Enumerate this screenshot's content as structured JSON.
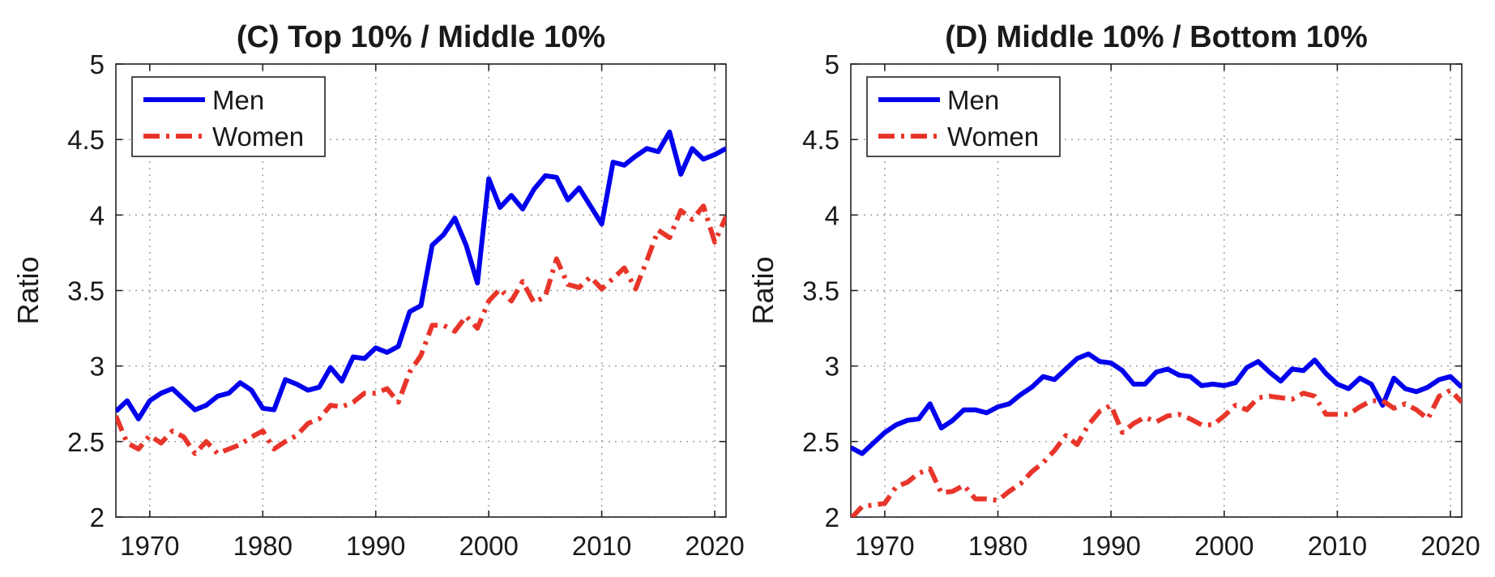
{
  "chart_data": [
    {
      "type": "line",
      "title": "(C) Top 10% / Middle 10%",
      "xlabel": "",
      "ylabel": "Ratio",
      "xlim": [
        1967,
        2021
      ],
      "ylim": [
        2,
        5
      ],
      "xticks": [
        1970,
        1980,
        1990,
        2000,
        2010,
        2020
      ],
      "yticks": [
        2,
        2.5,
        3,
        3.5,
        4,
        4.5,
        5
      ],
      "ytick_labels": [
        "2",
        "2.5",
        "3",
        "3.5",
        "4",
        "4.5",
        "5"
      ],
      "grid": true,
      "legend_position": "top-left",
      "x": [
        1967,
        1968,
        1969,
        1970,
        1971,
        1972,
        1973,
        1974,
        1975,
        1976,
        1977,
        1978,
        1979,
        1980,
        1981,
        1982,
        1983,
        1984,
        1985,
        1986,
        1987,
        1988,
        1989,
        1990,
        1991,
        1992,
        1993,
        1994,
        1995,
        1996,
        1997,
        1998,
        1999,
        2000,
        2001,
        2002,
        2003,
        2004,
        2005,
        2006,
        2007,
        2008,
        2009,
        2010,
        2011,
        2012,
        2013,
        2014,
        2015,
        2016,
        2017,
        2018,
        2019,
        2020,
        2021
      ],
      "series": [
        {
          "name": "Men",
          "color": "#0000ee",
          "style": "solid",
          "values": [
            2.7,
            2.77,
            2.65,
            2.77,
            2.82,
            2.85,
            2.78,
            2.71,
            2.74,
            2.8,
            2.82,
            2.89,
            2.84,
            2.72,
            2.71,
            2.91,
            2.88,
            2.84,
            2.86,
            2.99,
            2.9,
            3.06,
            3.05,
            3.12,
            3.09,
            3.13,
            3.36,
            3.4,
            3.8,
            3.87,
            3.98,
            3.8,
            3.55,
            4.24,
            4.05,
            4.13,
            4.04,
            4.17,
            4.26,
            4.25,
            4.1,
            4.18,
            4.06,
            3.94,
            4.35,
            4.33,
            4.39,
            4.44,
            4.42,
            4.55,
            4.27,
            4.44,
            4.37,
            4.4,
            4.44
          ]
        },
        {
          "name": "Women",
          "color": "#e8352a",
          "style": "dashdot",
          "values": [
            2.67,
            2.49,
            2.45,
            2.54,
            2.49,
            2.57,
            2.53,
            2.42,
            2.5,
            2.42,
            2.45,
            2.48,
            2.53,
            2.57,
            2.45,
            2.5,
            2.54,
            2.62,
            2.65,
            2.74,
            2.73,
            2.76,
            2.82,
            2.82,
            2.85,
            2.76,
            2.96,
            3.07,
            3.27,
            3.27,
            3.23,
            3.33,
            3.25,
            3.43,
            3.51,
            3.43,
            3.56,
            3.42,
            3.46,
            3.71,
            3.54,
            3.52,
            3.59,
            3.51,
            3.58,
            3.65,
            3.51,
            3.7,
            3.9,
            3.85,
            4.03,
            3.97,
            4.06,
            3.82,
            3.99
          ]
        }
      ]
    },
    {
      "type": "line",
      "title": "(D) Middle 10% / Bottom 10%",
      "xlabel": "",
      "ylabel": "Ratio",
      "xlim": [
        1967,
        2021
      ],
      "ylim": [
        2,
        5
      ],
      "xticks": [
        1970,
        1980,
        1990,
        2000,
        2010,
        2020
      ],
      "yticks": [
        2,
        2.5,
        3,
        3.5,
        4,
        4.5,
        5
      ],
      "ytick_labels": [
        "2",
        "2.5",
        "3",
        "3.5",
        "4",
        "4.5",
        "5"
      ],
      "grid": true,
      "legend_position": "top-left",
      "x": [
        1967,
        1968,
        1969,
        1970,
        1971,
        1972,
        1973,
        1974,
        1975,
        1976,
        1977,
        1978,
        1979,
        1980,
        1981,
        1982,
        1983,
        1984,
        1985,
        1986,
        1987,
        1988,
        1989,
        1990,
        1991,
        1992,
        1993,
        1994,
        1995,
        1996,
        1997,
        1998,
        1999,
        2000,
        2001,
        2002,
        2003,
        2004,
        2005,
        2006,
        2007,
        2008,
        2009,
        2010,
        2011,
        2012,
        2013,
        2014,
        2015,
        2016,
        2017,
        2018,
        2019,
        2020,
        2021
      ],
      "series": [
        {
          "name": "Men",
          "color": "#0000ee",
          "style": "solid",
          "values": [
            2.46,
            2.42,
            2.49,
            2.56,
            2.61,
            2.64,
            2.65,
            2.75,
            2.59,
            2.64,
            2.71,
            2.71,
            2.69,
            2.73,
            2.75,
            2.81,
            2.86,
            2.93,
            2.91,
            2.98,
            3.05,
            3.08,
            3.03,
            3.02,
            2.97,
            2.88,
            2.88,
            2.96,
            2.98,
            2.94,
            2.93,
            2.87,
            2.88,
            2.87,
            2.89,
            2.99,
            3.03,
            2.96,
            2.9,
            2.98,
            2.97,
            3.04,
            2.95,
            2.88,
            2.85,
            2.92,
            2.88,
            2.74,
            2.92,
            2.85,
            2.83,
            2.86,
            2.91,
            2.93,
            2.86
          ]
        },
        {
          "name": "Women",
          "color": "#e8352a",
          "style": "dashdot",
          "values": [
            1.99,
            2.07,
            2.08,
            2.09,
            2.2,
            2.23,
            2.29,
            2.32,
            2.16,
            2.17,
            2.21,
            2.12,
            2.12,
            2.11,
            2.17,
            2.22,
            2.3,
            2.36,
            2.44,
            2.54,
            2.48,
            2.61,
            2.7,
            2.74,
            2.56,
            2.62,
            2.66,
            2.63,
            2.67,
            2.68,
            2.65,
            2.61,
            2.61,
            2.67,
            2.74,
            2.71,
            2.79,
            2.8,
            2.79,
            2.78,
            2.82,
            2.8,
            2.68,
            2.68,
            2.68,
            2.73,
            2.77,
            2.77,
            2.72,
            2.75,
            2.71,
            2.65,
            2.8,
            2.84,
            2.76
          ]
        }
      ]
    }
  ]
}
